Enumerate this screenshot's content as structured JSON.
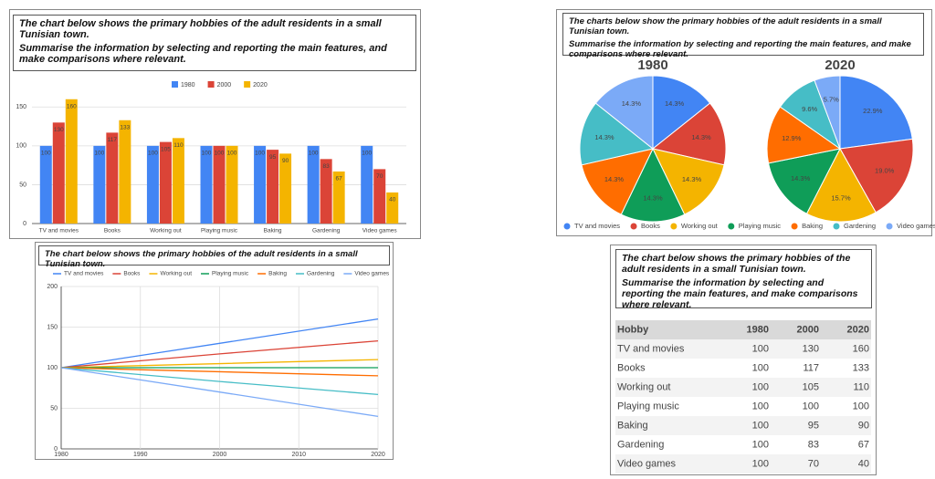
{
  "chart_data": [
    {
      "type": "bar",
      "title": "The chart below shows the primary hobbies of the adult residents in a small Tunisian town.",
      "subtitle": "Summarise the information by selecting and reporting the main features, and make comparisons where relevant.",
      "categories": [
        "TV and movies",
        "Books",
        "Working out",
        "Playing music",
        "Baking",
        "Gardening",
        "Video games"
      ],
      "series": [
        {
          "name": "1980",
          "color": "#4285f4",
          "values": [
            100,
            100,
            100,
            100,
            100,
            100,
            100
          ]
        },
        {
          "name": "2000",
          "color": "#db4437",
          "values": [
            130,
            117,
            105,
            100,
            95,
            83,
            70
          ]
        },
        {
          "name": "2020",
          "color": "#f4b400",
          "values": [
            160,
            133,
            110,
            100,
            90,
            67,
            40
          ]
        }
      ],
      "ylim": [
        0,
        175
      ],
      "yticks": [
        0,
        50,
        100,
        150
      ],
      "grid": true,
      "legend": "top"
    },
    {
      "type": "pie",
      "title": "The charts below show the primary hobbies of the adult residents in a small Tunisian town.",
      "subtitle": "Summarise the information by selecting and reporting the main features, and make comparisons where relevant.",
      "categories": [
        "TV and movies",
        "Books",
        "Working out",
        "Playing music",
        "Baking",
        "Gardening",
        "Video games"
      ],
      "colors": [
        "#4285f4",
        "#db4437",
        "#f4b400",
        "#0f9d58",
        "#ff6d00",
        "#46bdc6",
        "#7baaf7"
      ],
      "pies": [
        {
          "title": "1980",
          "values": [
            14.3,
            14.3,
            14.3,
            14.3,
            14.3,
            14.3,
            14.3
          ],
          "value_labels": [
            "14.3%",
            "14.3%",
            "14.3%",
            "14.3%",
            "14.3%",
            "14.3%",
            "14.3%"
          ]
        },
        {
          "title": "2020",
          "values": [
            22.9,
            19.0,
            15.7,
            14.3,
            12.9,
            9.6,
            5.7
          ],
          "value_labels": [
            "22.9%",
            "19.0%",
            "15.7%",
            "14.3%",
            "12.9%",
            "9.6%",
            "5.7%"
          ]
        }
      ],
      "legend": "bottom"
    },
    {
      "type": "line",
      "title": "The chart below shows the primary hobbies of the adult residents in a small Tunisian town.",
      "x": [
        1980,
        2000,
        2020
      ],
      "series": [
        {
          "name": "TV and movies",
          "color": "#4285f4",
          "values": [
            100,
            130,
            160
          ]
        },
        {
          "name": "Books",
          "color": "#db4437",
          "values": [
            100,
            117,
            133
          ]
        },
        {
          "name": "Working out",
          "color": "#f4b400",
          "values": [
            100,
            105,
            110
          ]
        },
        {
          "name": "Playing music",
          "color": "#0f9d58",
          "values": [
            100,
            100,
            100
          ]
        },
        {
          "name": "Baking",
          "color": "#ff6d00",
          "values": [
            100,
            95,
            90
          ]
        },
        {
          "name": "Gardening",
          "color": "#46bdc6",
          "values": [
            100,
            83,
            67
          ]
        },
        {
          "name": "Video games",
          "color": "#7baaf7",
          "values": [
            100,
            70,
            40
          ]
        }
      ],
      "xlim": [
        1980,
        2020
      ],
      "xticks": [
        1980,
        1990,
        2000,
        2010,
        2020
      ],
      "ylim": [
        0,
        200
      ],
      "yticks": [
        0,
        50,
        100,
        150,
        200
      ],
      "grid": true,
      "legend": "top"
    }
  ],
  "table": {
    "title": "The chart below shows the primary hobbies of the adult residents in a small Tunisian town.",
    "subtitle": "Summarise the information by selecting and reporting the main features, and make comparisons where relevant.",
    "header": [
      "Hobby",
      "1980",
      "2000",
      "2020"
    ],
    "rows": [
      [
        "TV and movies",
        100,
        130,
        160
      ],
      [
        "Books",
        100,
        117,
        133
      ],
      [
        "Working out",
        100,
        105,
        110
      ],
      [
        "Playing music",
        100,
        100,
        100
      ],
      [
        "Baking",
        100,
        95,
        90
      ],
      [
        "Gardening",
        100,
        83,
        67
      ],
      [
        "Video games",
        100,
        70,
        40
      ]
    ]
  }
}
